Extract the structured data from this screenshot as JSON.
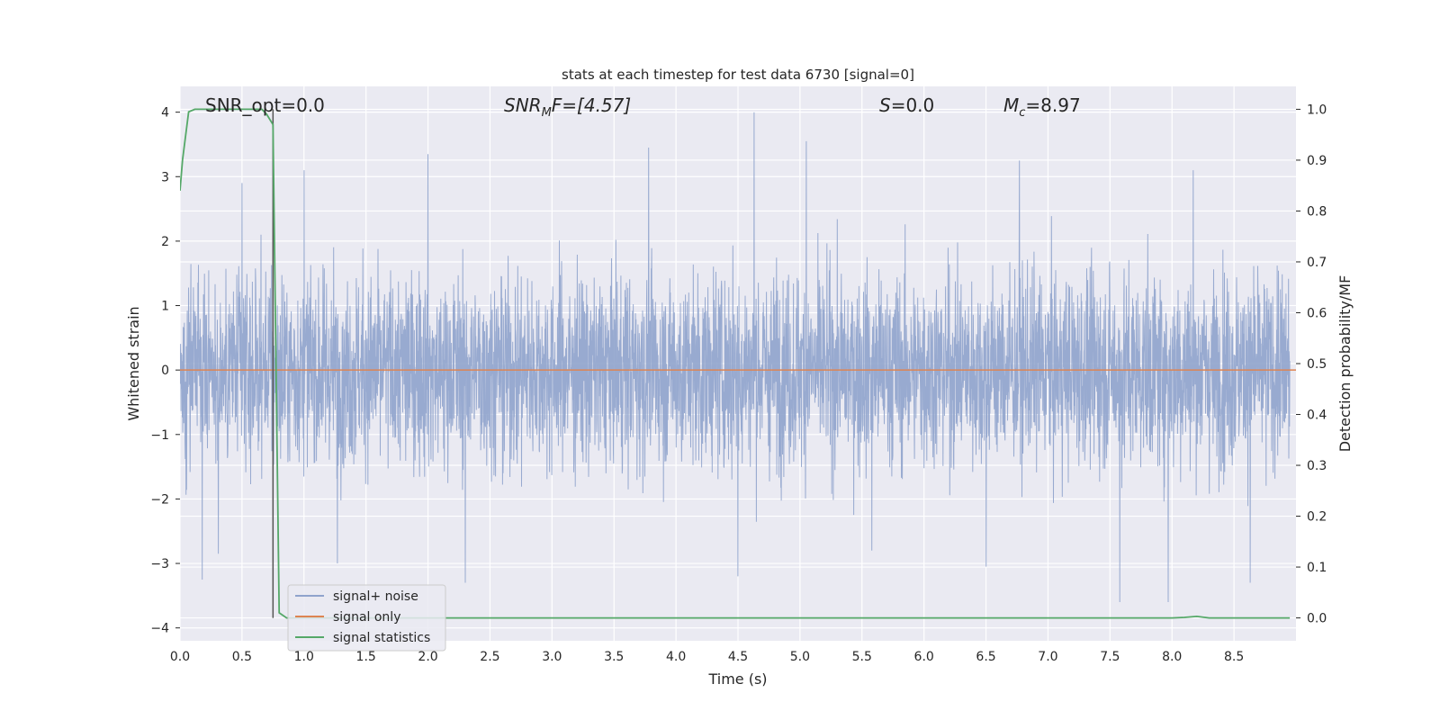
{
  "chart_data": {
    "type": "line",
    "title": "stats at each timestep for test data 6730 [signal=0]",
    "xlabel": "Time (s)",
    "ylabel": "Whitened strain",
    "ylabel_right": "Detection probability/MF",
    "xlim": [
      0.0,
      9.0
    ],
    "ylim": [
      -4.2,
      4.4
    ],
    "ylim_right": [
      -0.045,
      1.045
    ],
    "x_ticks": [
      "0.0",
      "0.5",
      "1.0",
      "1.5",
      "2.0",
      "2.5",
      "3.0",
      "3.5",
      "4.0",
      "4.5",
      "5.0",
      "5.5",
      "6.0",
      "6.5",
      "7.0",
      "7.5",
      "8.0",
      "8.5"
    ],
    "y_ticks": [
      "−4",
      "−3",
      "−2",
      "−1",
      "0",
      "1",
      "2",
      "3",
      "4"
    ],
    "y_ticks_right": [
      "0.0",
      "0.1",
      "0.2",
      "0.3",
      "0.4",
      "0.5",
      "0.6",
      "0.7",
      "0.8",
      "0.9",
      "1.0"
    ],
    "grid": true,
    "legend_position": "lower-left",
    "annotations": {
      "snr_opt": "SNR_opt=0.0",
      "snr_mf_base": "SNR",
      "snr_mf_sub": "M",
      "snr_mf_rest": "F=[4.57]",
      "s_label": "S",
      "s_value": "=0.0",
      "mc_base": "M",
      "mc_sub": "c",
      "mc_value": "=8.97"
    },
    "marker_line_x": 0.75,
    "series": [
      {
        "name": "signal+ noise",
        "color": "#8fa3cc",
        "axis": "left",
        "style": "dense noise, approximately -2.5 to 2.5 with peaks to ±4",
        "notable_peaks": [
          {
            "x": 0.18,
            "y": -3.25
          },
          {
            "x": 0.31,
            "y": -2.85
          },
          {
            "x": 0.5,
            "y": 2.9
          },
          {
            "x": 1.0,
            "y": 3.1
          },
          {
            "x": 1.27,
            "y": -3.0
          },
          {
            "x": 2.0,
            "y": 3.35
          },
          {
            "x": 2.3,
            "y": -3.3
          },
          {
            "x": 3.78,
            "y": 3.45
          },
          {
            "x": 4.5,
            "y": -3.2
          },
          {
            "x": 4.63,
            "y": 4.0
          },
          {
            "x": 5.05,
            "y": 3.55
          },
          {
            "x": 5.58,
            "y": -2.8
          },
          {
            "x": 6.5,
            "y": -3.05
          },
          {
            "x": 6.77,
            "y": 3.25
          },
          {
            "x": 7.58,
            "y": -3.6
          },
          {
            "x": 7.97,
            "y": -3.6
          },
          {
            "x": 8.17,
            "y": 3.1
          },
          {
            "x": 8.63,
            "y": -3.3
          }
        ]
      },
      {
        "name": "signal only",
        "color": "#dd8452",
        "axis": "left",
        "x": [
          0.0,
          9.0
        ],
        "y": [
          0.0,
          0.0
        ]
      },
      {
        "name": "signal statistics",
        "color": "#55a868",
        "axis": "right",
        "x": [
          0.0,
          0.02,
          0.07,
          0.12,
          0.3,
          0.5,
          0.66,
          0.7,
          0.75,
          0.8,
          0.86,
          1.0,
          2.0,
          4.0,
          6.0,
          8.0,
          8.1,
          8.2,
          8.3,
          8.5,
          8.95
        ],
        "y": [
          0.84,
          0.9,
          0.995,
          1.0,
          1.0,
          1.0,
          1.0,
          0.99,
          0.97,
          0.01,
          0.0,
          0.0,
          0.0,
          0.0,
          0.0,
          0.0,
          0.001,
          0.003,
          0.0,
          0.0,
          0.0
        ]
      }
    ]
  }
}
